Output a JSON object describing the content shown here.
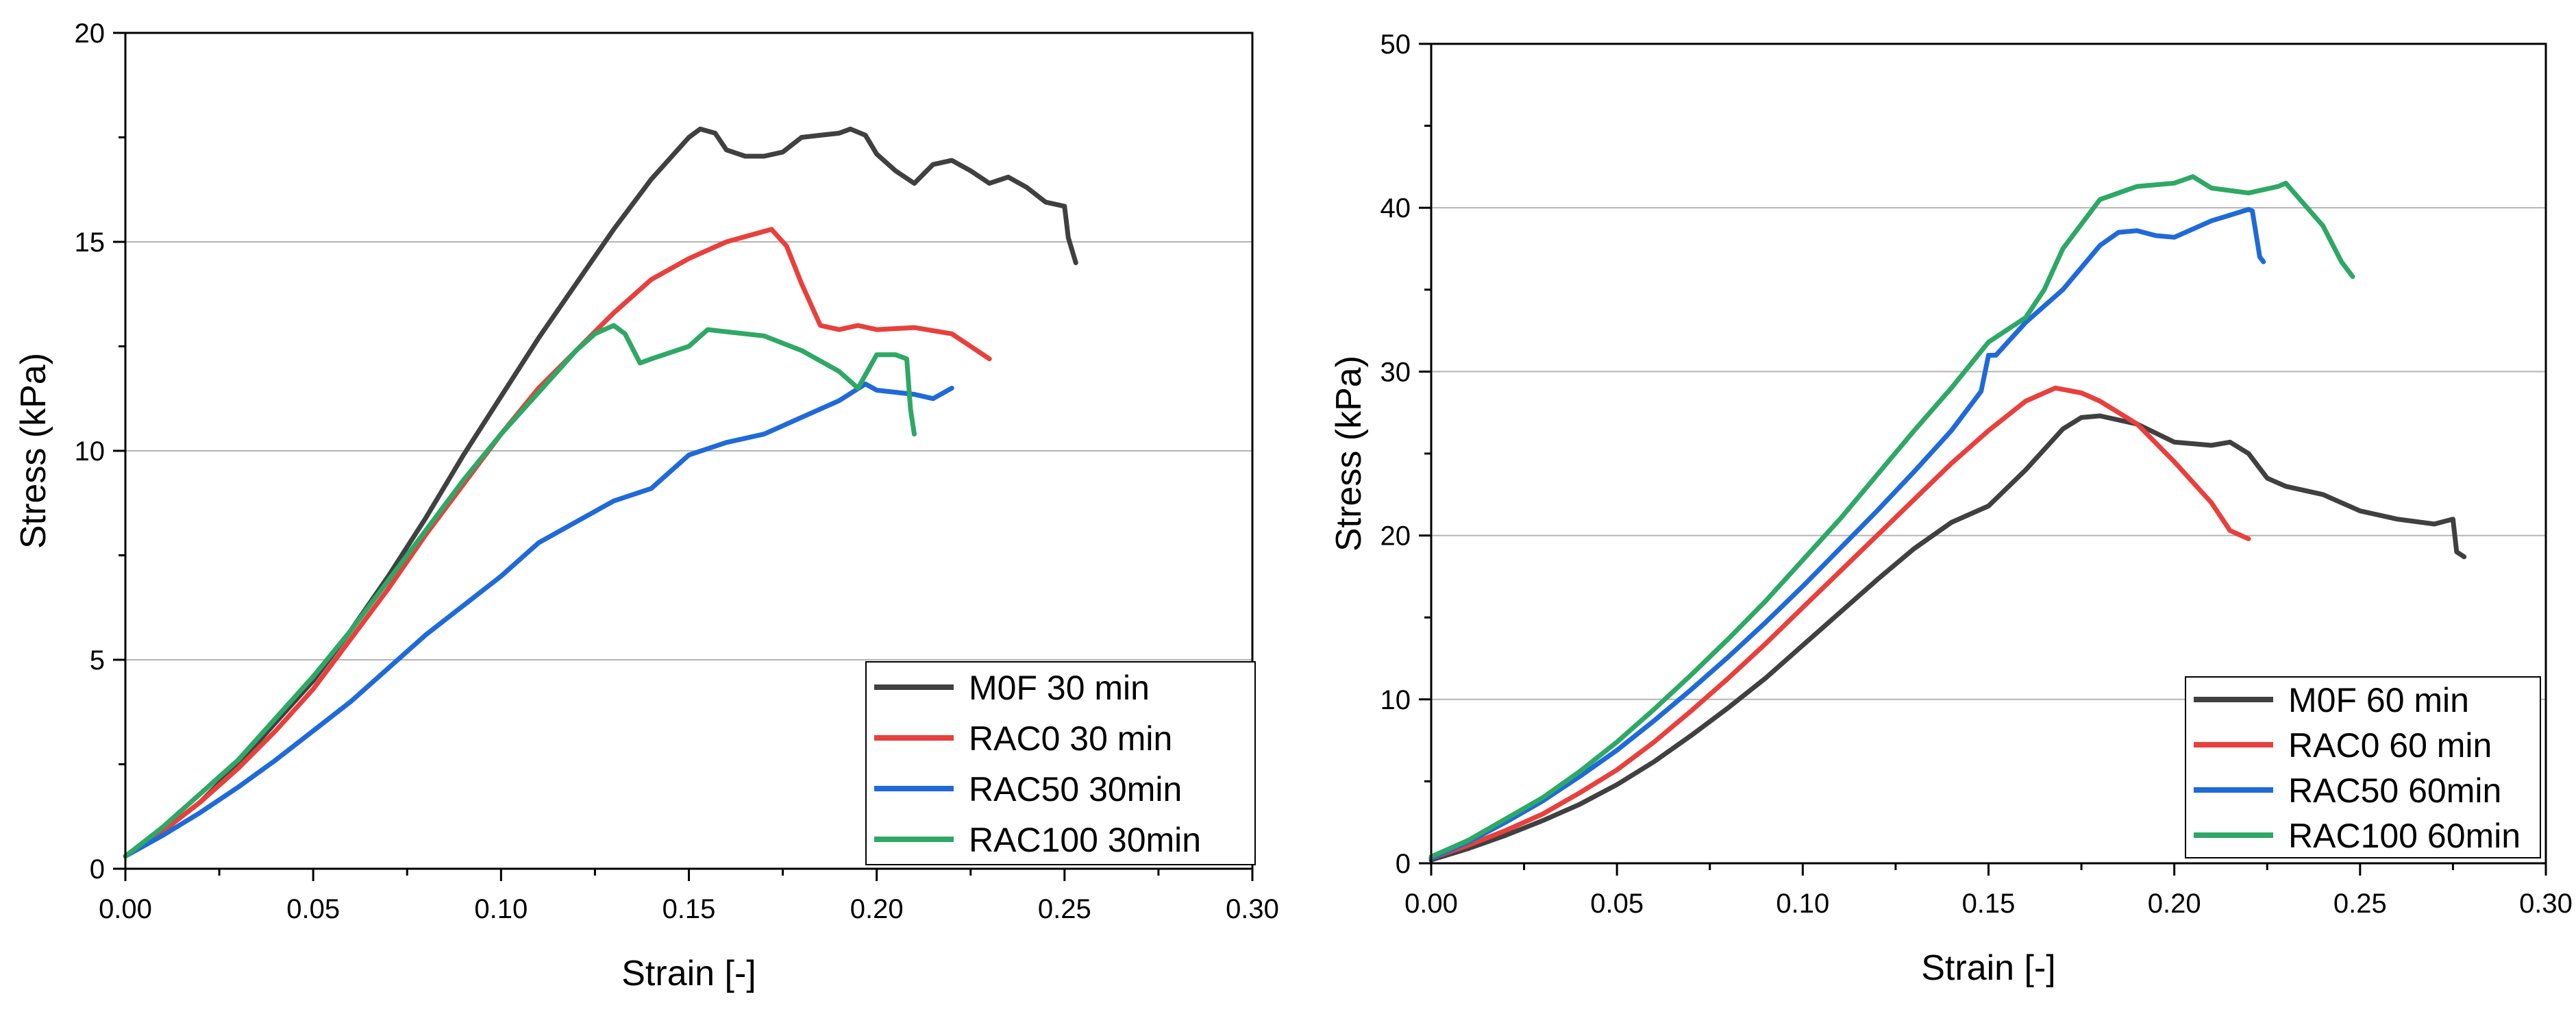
{
  "chart_data": [
    {
      "type": "line",
      "title": "",
      "xlabel": "Strain [-]",
      "ylabel": "Stress (kPa)",
      "xlim": [
        0,
        0.3
      ],
      "ylim": [
        0,
        20
      ],
      "xticks": [
        0,
        0.05,
        0.1,
        0.15,
        0.2,
        0.25,
        0.3
      ],
      "xtick_labels": [
        "0.00",
        "0.05",
        "0.10",
        "0.15",
        "0.20",
        "0.25",
        "0.30"
      ],
      "yticks": [
        0,
        5,
        10,
        15,
        20
      ],
      "ytick_labels": [
        "0",
        "5",
        "10",
        "15",
        "20"
      ],
      "grid": "horizontal",
      "legend_position": "bottom-right",
      "series": [
        {
          "name": "M0F 30 min",
          "color": "#404040",
          "points": [
            [
              0,
              0.3
            ],
            [
              0.01,
              0.9
            ],
            [
              0.02,
              1.6
            ],
            [
              0.03,
              2.5
            ],
            [
              0.04,
              3.5
            ],
            [
              0.05,
              4.5
            ],
            [
              0.06,
              5.7
            ],
            [
              0.07,
              7.0
            ],
            [
              0.08,
              8.4
            ],
            [
              0.09,
              9.9
            ],
            [
              0.1,
              11.3
            ],
            [
              0.11,
              12.7
            ],
            [
              0.12,
              14.0
            ],
            [
              0.13,
              15.3
            ],
            [
              0.14,
              16.5
            ],
            [
              0.15,
              17.5
            ],
            [
              0.153,
              17.7
            ],
            [
              0.157,
              17.6
            ],
            [
              0.16,
              17.2
            ],
            [
              0.165,
              17.05
            ],
            [
              0.17,
              17.05
            ],
            [
              0.175,
              17.15
            ],
            [
              0.18,
              17.5
            ],
            [
              0.185,
              17.55
            ],
            [
              0.19,
              17.6
            ],
            [
              0.193,
              17.7
            ],
            [
              0.197,
              17.55
            ],
            [
              0.2,
              17.1
            ],
            [
              0.205,
              16.7
            ],
            [
              0.21,
              16.4
            ],
            [
              0.215,
              16.85
            ],
            [
              0.22,
              16.95
            ],
            [
              0.225,
              16.7
            ],
            [
              0.23,
              16.4
            ],
            [
              0.235,
              16.55
            ],
            [
              0.24,
              16.3
            ],
            [
              0.245,
              15.95
            ],
            [
              0.25,
              15.85
            ],
            [
              0.251,
              15.1
            ],
            [
              0.253,
              14.5
            ]
          ]
        },
        {
          "name": "RAC0 30 min",
          "color": "#e8403c",
          "points": [
            [
              0,
              0.3
            ],
            [
              0.01,
              0.9
            ],
            [
              0.02,
              1.6
            ],
            [
              0.03,
              2.4
            ],
            [
              0.04,
              3.3
            ],
            [
              0.05,
              4.3
            ],
            [
              0.06,
              5.5
            ],
            [
              0.07,
              6.7
            ],
            [
              0.08,
              8.0
            ],
            [
              0.09,
              9.2
            ],
            [
              0.1,
              10.4
            ],
            [
              0.11,
              11.5
            ],
            [
              0.12,
              12.4
            ],
            [
              0.13,
              13.3
            ],
            [
              0.14,
              14.1
            ],
            [
              0.15,
              14.6
            ],
            [
              0.16,
              15.0
            ],
            [
              0.17,
              15.25
            ],
            [
              0.172,
              15.3
            ],
            [
              0.176,
              14.9
            ],
            [
              0.18,
              14.0
            ],
            [
              0.185,
              13.0
            ],
            [
              0.19,
              12.9
            ],
            [
              0.195,
              13.0
            ],
            [
              0.2,
              12.9
            ],
            [
              0.21,
              12.95
            ],
            [
              0.22,
              12.8
            ],
            [
              0.225,
              12.5
            ],
            [
              0.23,
              12.2
            ]
          ]
        },
        {
          "name": "RAC50 30min",
          "color": "#1f6ad8",
          "points": [
            [
              0,
              0.3
            ],
            [
              0.01,
              0.8
            ],
            [
              0.02,
              1.35
            ],
            [
              0.03,
              1.95
            ],
            [
              0.04,
              2.6
            ],
            [
              0.05,
              3.3
            ],
            [
              0.06,
              4.0
            ],
            [
              0.07,
              4.8
            ],
            [
              0.08,
              5.6
            ],
            [
              0.09,
              6.3
            ],
            [
              0.1,
              7.0
            ],
            [
              0.11,
              7.8
            ],
            [
              0.12,
              8.3
            ],
            [
              0.13,
              8.8
            ],
            [
              0.14,
              9.1
            ],
            [
              0.15,
              9.9
            ],
            [
              0.16,
              10.2
            ],
            [
              0.17,
              10.4
            ],
            [
              0.18,
              10.8
            ],
            [
              0.19,
              11.2
            ],
            [
              0.197,
              11.6
            ],
            [
              0.2,
              11.45
            ],
            [
              0.21,
              11.35
            ],
            [
              0.215,
              11.25
            ],
            [
              0.22,
              11.5
            ]
          ]
        },
        {
          "name": "RAC100 30min",
          "color": "#2ea865",
          "points": [
            [
              0,
              0.3
            ],
            [
              0.01,
              1.0
            ],
            [
              0.02,
              1.8
            ],
            [
              0.03,
              2.6
            ],
            [
              0.04,
              3.6
            ],
            [
              0.05,
              4.6
            ],
            [
              0.06,
              5.7
            ],
            [
              0.07,
              6.9
            ],
            [
              0.08,
              8.1
            ],
            [
              0.09,
              9.3
            ],
            [
              0.1,
              10.4
            ],
            [
              0.11,
              11.4
            ],
            [
              0.12,
              12.4
            ],
            [
              0.125,
              12.8
            ],
            [
              0.13,
              13.0
            ],
            [
              0.133,
              12.8
            ],
            [
              0.137,
              12.1
            ],
            [
              0.14,
              12.2
            ],
            [
              0.15,
              12.5
            ],
            [
              0.155,
              12.9
            ],
            [
              0.16,
              12.85
            ],
            [
              0.17,
              12.75
            ],
            [
              0.18,
              12.4
            ],
            [
              0.19,
              11.9
            ],
            [
              0.195,
              11.5
            ],
            [
              0.2,
              12.3
            ],
            [
              0.205,
              12.3
            ],
            [
              0.208,
              12.2
            ],
            [
              0.209,
              11.0
            ],
            [
              0.21,
              10.4
            ]
          ]
        }
      ]
    },
    {
      "type": "line",
      "title": "",
      "xlabel": "Strain [-]",
      "ylabel": "Stress (kPa)",
      "xlim": [
        0,
        0.3
      ],
      "ylim": [
        0,
        50
      ],
      "xticks": [
        0,
        0.05,
        0.1,
        0.15,
        0.2,
        0.25,
        0.3
      ],
      "xtick_labels": [
        "0.00",
        "0.05",
        "0.10",
        "0.15",
        "0.20",
        "0.25",
        "0.30"
      ],
      "yticks": [
        0,
        10,
        20,
        30,
        40,
        50
      ],
      "ytick_labels": [
        "0",
        "10",
        "20",
        "30",
        "40",
        "50"
      ],
      "grid": "horizontal",
      "legend_position": "bottom-right",
      "series": [
        {
          "name": "M0F 60 min",
          "color": "#404040",
          "points": [
            [
              0,
              0.2
            ],
            [
              0.01,
              0.9
            ],
            [
              0.02,
              1.7
            ],
            [
              0.03,
              2.6
            ],
            [
              0.04,
              3.6
            ],
            [
              0.05,
              4.8
            ],
            [
              0.06,
              6.2
            ],
            [
              0.07,
              7.8
            ],
            [
              0.08,
              9.5
            ],
            [
              0.09,
              11.3
            ],
            [
              0.1,
              13.3
            ],
            [
              0.11,
              15.3
            ],
            [
              0.12,
              17.3
            ],
            [
              0.13,
              19.2
            ],
            [
              0.14,
              20.8
            ],
            [
              0.15,
              21.8
            ],
            [
              0.16,
              24.0
            ],
            [
              0.17,
              26.5
            ],
            [
              0.175,
              27.2
            ],
            [
              0.18,
              27.3
            ],
            [
              0.19,
              26.8
            ],
            [
              0.2,
              25.7
            ],
            [
              0.21,
              25.5
            ],
            [
              0.215,
              25.7
            ],
            [
              0.22,
              25.0
            ],
            [
              0.225,
              23.5
            ],
            [
              0.23,
              23.0
            ],
            [
              0.24,
              22.5
            ],
            [
              0.25,
              21.5
            ],
            [
              0.26,
              21.0
            ],
            [
              0.27,
              20.7
            ],
            [
              0.275,
              21.0
            ],
            [
              0.276,
              19.0
            ],
            [
              0.278,
              18.7
            ]
          ]
        },
        {
          "name": "RAC0 60 min",
          "color": "#e8403c",
          "points": [
            [
              0,
              0.3
            ],
            [
              0.01,
              1.1
            ],
            [
              0.02,
              2.0
            ],
            [
              0.03,
              3.0
            ],
            [
              0.04,
              4.3
            ],
            [
              0.05,
              5.7
            ],
            [
              0.06,
              7.4
            ],
            [
              0.07,
              9.3
            ],
            [
              0.08,
              11.3
            ],
            [
              0.09,
              13.4
            ],
            [
              0.1,
              15.6
            ],
            [
              0.11,
              17.8
            ],
            [
              0.12,
              20.0
            ],
            [
              0.13,
              22.2
            ],
            [
              0.14,
              24.4
            ],
            [
              0.15,
              26.4
            ],
            [
              0.16,
              28.2
            ],
            [
              0.168,
              29.0
            ],
            [
              0.175,
              28.7
            ],
            [
              0.18,
              28.2
            ],
            [
              0.19,
              26.8
            ],
            [
              0.2,
              24.5
            ],
            [
              0.21,
              22.0
            ],
            [
              0.215,
              20.3
            ],
            [
              0.22,
              19.8
            ]
          ]
        },
        {
          "name": "RAC50 60min",
          "color": "#1f6ad8",
          "points": [
            [
              0,
              0.3
            ],
            [
              0.01,
              1.3
            ],
            [
              0.02,
              2.5
            ],
            [
              0.03,
              3.8
            ],
            [
              0.04,
              5.3
            ],
            [
              0.05,
              6.9
            ],
            [
              0.06,
              8.7
            ],
            [
              0.07,
              10.6
            ],
            [
              0.08,
              12.6
            ],
            [
              0.09,
              14.7
            ],
            [
              0.1,
              16.9
            ],
            [
              0.11,
              19.2
            ],
            [
              0.12,
              21.5
            ],
            [
              0.13,
              23.9
            ],
            [
              0.14,
              26.4
            ],
            [
              0.148,
              28.8
            ],
            [
              0.15,
              31.0
            ],
            [
              0.152,
              31.0
            ],
            [
              0.16,
              33.0
            ],
            [
              0.17,
              35.0
            ],
            [
              0.18,
              37.7
            ],
            [
              0.185,
              38.5
            ],
            [
              0.19,
              38.6
            ],
            [
              0.195,
              38.3
            ],
            [
              0.2,
              38.2
            ],
            [
              0.21,
              39.2
            ],
            [
              0.22,
              39.9
            ],
            [
              0.221,
              39.8
            ],
            [
              0.223,
              37.0
            ],
            [
              0.224,
              36.7
            ]
          ]
        },
        {
          "name": "RAC100 60min",
          "color": "#2ea865",
          "points": [
            [
              0,
              0.4
            ],
            [
              0.01,
              1.4
            ],
            [
              0.02,
              2.7
            ],
            [
              0.03,
              4.0
            ],
            [
              0.04,
              5.6
            ],
            [
              0.05,
              7.4
            ],
            [
              0.06,
              9.4
            ],
            [
              0.07,
              11.5
            ],
            [
              0.08,
              13.7
            ],
            [
              0.09,
              16.0
            ],
            [
              0.1,
              18.5
            ],
            [
              0.11,
              21.0
            ],
            [
              0.12,
              23.7
            ],
            [
              0.13,
              26.4
            ],
            [
              0.14,
              29.0
            ],
            [
              0.15,
              31.8
            ],
            [
              0.16,
              33.3
            ],
            [
              0.165,
              35.0
            ],
            [
              0.17,
              37.5
            ],
            [
              0.18,
              40.5
            ],
            [
              0.19,
              41.3
            ],
            [
              0.2,
              41.5
            ],
            [
              0.205,
              41.9
            ],
            [
              0.21,
              41.2
            ],
            [
              0.22,
              40.9
            ],
            [
              0.228,
              41.3
            ],
            [
              0.23,
              41.5
            ],
            [
              0.235,
              40.2
            ],
            [
              0.24,
              38.9
            ],
            [
              0.245,
              36.7
            ],
            [
              0.248,
              35.8
            ]
          ]
        }
      ]
    }
  ]
}
